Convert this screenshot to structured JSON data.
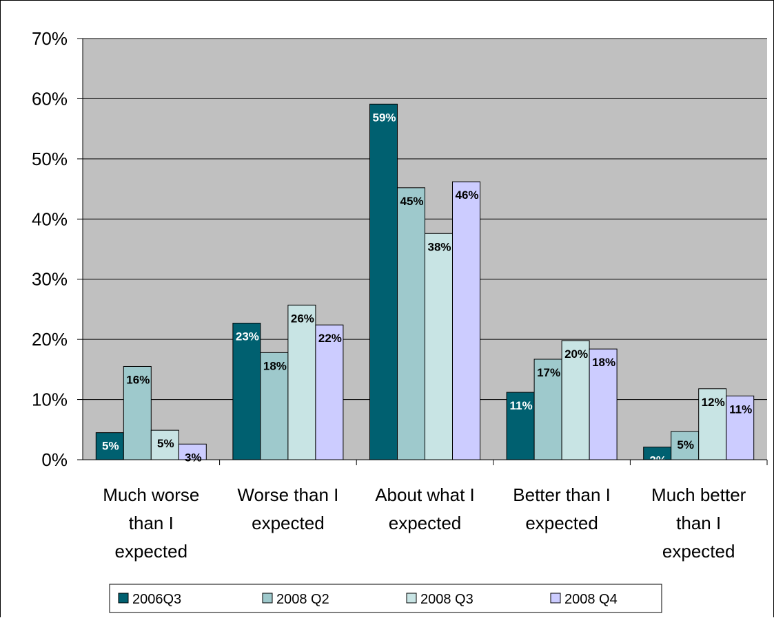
{
  "chart_data": {
    "type": "bar",
    "categories": [
      "Much worse than I expected",
      "Worse than I expected",
      "About what I expected",
      "Better than I expected",
      "Much better than I expected"
    ],
    "category_lines": [
      [
        "Much worse",
        "than I",
        "expected"
      ],
      [
        "Worse than I",
        "expected"
      ],
      [
        "About what I",
        "expected"
      ],
      [
        "Better than I",
        "expected"
      ],
      [
        "Much better",
        "than I",
        "expected"
      ]
    ],
    "series": [
      {
        "name": "2006Q3",
        "color": "#006070",
        "label_color": "#ffffff",
        "values": [
          4.5,
          22.7,
          59.1,
          11.2,
          2.1
        ],
        "labels": [
          "5%",
          "23%",
          "59%",
          "11%",
          "2%"
        ]
      },
      {
        "name": "2008 Q2",
        "color": "#9ec9cc",
        "label_color": "#000000",
        "values": [
          15.5,
          17.8,
          45.2,
          16.7,
          4.7
        ],
        "labels": [
          "16%",
          "18%",
          "45%",
          "17%",
          "5%"
        ]
      },
      {
        "name": "2008 Q3",
        "color": "#c8e4e4",
        "label_color": "#000000",
        "values": [
          4.9,
          25.7,
          37.6,
          19.8,
          11.8
        ],
        "labels": [
          "5%",
          "26%",
          "38%",
          "20%",
          "12%"
        ]
      },
      {
        "name": "2008 Q4",
        "color": "#ccccff",
        "label_color": "#000000",
        "values": [
          2.6,
          22.4,
          46.2,
          18.4,
          10.6
        ],
        "labels": [
          "3%",
          "22%",
          "46%",
          "18%",
          "11%"
        ]
      }
    ],
    "y_ticks": [
      "0%",
      "10%",
      "20%",
      "30%",
      "40%",
      "50%",
      "60%",
      "70%"
    ],
    "ylim": [
      0,
      70
    ],
    "grid": true,
    "legend_position": "bottom",
    "plot_background": "#c0c0c0"
  }
}
